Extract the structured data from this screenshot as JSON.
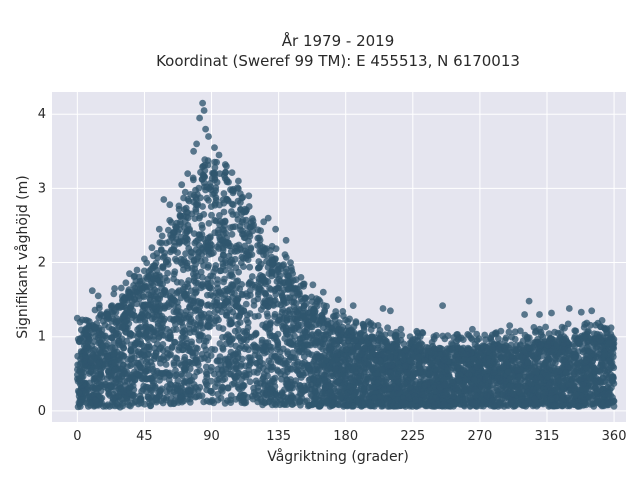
{
  "chart_data": {
    "type": "scatter",
    "title": "År 1979 - 2019",
    "subtitle": "Koordinat (Sweref 99 TM): E 455513, N 6170013",
    "xlabel": "Vågriktning (grader)",
    "ylabel": "Signifikant våghöjd (m)",
    "xlim": [
      -17,
      368
    ],
    "ylim": [
      -0.15,
      4.3
    ],
    "xticks": [
      0,
      45,
      90,
      135,
      180,
      225,
      270,
      315,
      360
    ],
    "yticks": [
      0,
      1,
      2,
      3,
      4
    ],
    "grid": true,
    "envelope": {
      "x": [
        0,
        10,
        20,
        30,
        40,
        50,
        60,
        70,
        80,
        90,
        100,
        110,
        120,
        130,
        140,
        150,
        160,
        170,
        180,
        190,
        200,
        220,
        240,
        260,
        280,
        300,
        320,
        340,
        360
      ],
      "upper": [
        1.0,
        1.2,
        1.35,
        1.5,
        1.7,
        1.95,
        2.3,
        2.7,
        3.1,
        3.3,
        3.15,
        2.8,
        2.4,
        2.1,
        1.95,
        1.6,
        1.35,
        1.2,
        1.15,
        1.05,
        1.0,
        0.9,
        0.85,
        0.85,
        0.9,
        0.9,
        1.0,
        1.0,
        1.0
      ],
      "lower": [
        0.05,
        0.05,
        0.05,
        0.05,
        0.05,
        0.05,
        0.08,
        0.1,
        0.1,
        0.1,
        0.1,
        0.1,
        0.08,
        0.08,
        0.07,
        0.07,
        0.06,
        0.06,
        0.06,
        0.06,
        0.06,
        0.06,
        0.06,
        0.06,
        0.06,
        0.06,
        0.06,
        0.06,
        0.06
      ]
    },
    "outliers": [
      [
        0,
        1.25
      ],
      [
        10,
        1.62
      ],
      [
        14,
        1.55
      ],
      [
        25,
        1.65
      ],
      [
        35,
        1.85
      ],
      [
        40,
        1.9
      ],
      [
        45,
        2.05
      ],
      [
        50,
        2.2
      ],
      [
        55,
        2.45
      ],
      [
        58,
        2.85
      ],
      [
        62,
        2.78
      ],
      [
        70,
        3.05
      ],
      [
        74,
        3.2
      ],
      [
        78,
        3.5
      ],
      [
        80,
        3.6
      ],
      [
        82,
        3.95
      ],
      [
        84,
        4.15
      ],
      [
        85,
        4.05
      ],
      [
        86,
        3.8
      ],
      [
        88,
        3.7
      ],
      [
        92,
        3.55
      ],
      [
        95,
        3.45
      ],
      [
        100,
        3.3
      ],
      [
        108,
        3.1
      ],
      [
        115,
        2.9
      ],
      [
        125,
        2.55
      ],
      [
        128,
        2.6
      ],
      [
        133,
        2.45
      ],
      [
        140,
        2.3
      ],
      [
        150,
        1.8
      ],
      [
        158,
        1.7
      ],
      [
        165,
        1.6
      ],
      [
        175,
        1.5
      ],
      [
        185,
        1.42
      ],
      [
        205,
        1.38
      ],
      [
        210,
        1.35
      ],
      [
        230,
        1.0
      ],
      [
        245,
        1.42
      ],
      [
        265,
        1.1
      ],
      [
        290,
        1.15
      ],
      [
        300,
        1.3
      ],
      [
        303,
        1.48
      ],
      [
        310,
        1.3
      ],
      [
        318,
        1.32
      ],
      [
        330,
        1.38
      ],
      [
        338,
        1.33
      ],
      [
        345,
        1.35
      ],
      [
        352,
        1.22
      ],
      [
        358,
        1.12
      ]
    ]
  },
  "style": {
    "marker_color": "#2f566e",
    "plot_background": "#e5e5ef",
    "grid_color": "#ffffff"
  }
}
